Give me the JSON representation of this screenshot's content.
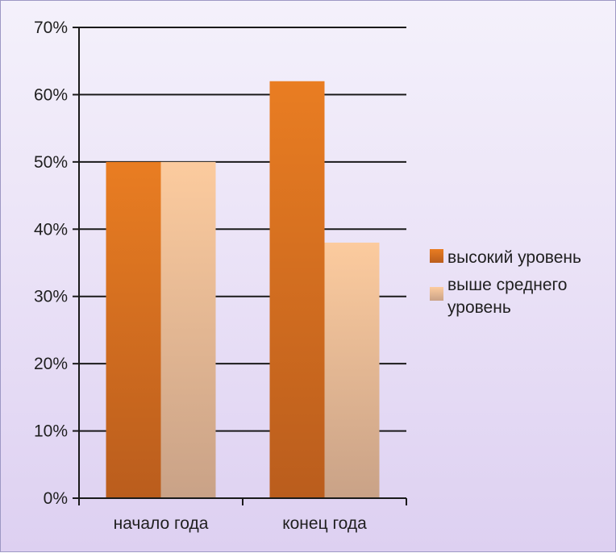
{
  "chart_data": {
    "type": "bar",
    "categories": [
      "начало года",
      "конец года"
    ],
    "series": [
      {
        "name": "высокий уровень",
        "values": [
          50,
          62
        ],
        "color_top": "#e97d22",
        "color_bottom": "#ba5d1d"
      },
      {
        "name": "выше среднего уровень",
        "name_lines": [
          "выше среднего",
          "уровень"
        ],
        "values": [
          50,
          38
        ],
        "color_top": "#fccb9e",
        "color_bottom": "#c9a287"
      }
    ],
    "y_axis": {
      "min": 0,
      "max": 70,
      "step": 10,
      "tick_labels": [
        "0%",
        "10%",
        "20%",
        "30%",
        "40%",
        "50%",
        "60%",
        "70%"
      ],
      "unit": "%"
    },
    "grid": true,
    "legend_position": "right",
    "title": "",
    "xlabel": "",
    "ylabel": ""
  }
}
